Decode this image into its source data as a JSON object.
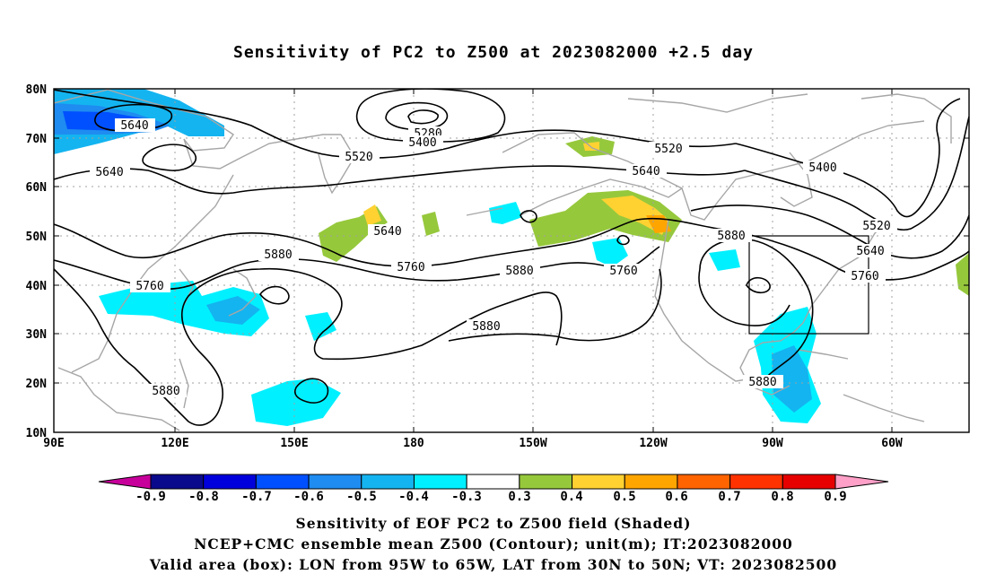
{
  "title": "Sensitivity of PC2 to Z500 at 2023082000 +2.5 day",
  "axes": {
    "lat_labels": [
      "80N",
      "70N",
      "60N",
      "50N",
      "40N",
      "30N",
      "20N",
      "10N"
    ],
    "lon_labels": [
      "90E",
      "120E",
      "150E",
      "180",
      "150W",
      "120W",
      "90W",
      "60W"
    ]
  },
  "contour_labels": [
    "5640",
    "5280",
    "5400",
    "5520",
    "5640",
    "5520",
    "5640",
    "5400",
    "5640",
    "5760",
    "5880",
    "5760",
    "5880",
    "5760",
    "5880",
    "5880",
    "5880",
    "5880",
    "5520",
    "5640",
    "5760"
  ],
  "valid_box": {
    "lon_from": "95W",
    "lon_to": "65W",
    "lat_from": "30N",
    "lat_to": "50N"
  },
  "colorbar": {
    "tick_labels": [
      "-0.9",
      "-0.8",
      "-0.7",
      "-0.6",
      "-0.5",
      "-0.4",
      "-0.3",
      "0.3",
      "0.4",
      "0.5",
      "0.6",
      "0.7",
      "0.8",
      "0.9"
    ],
    "colors": [
      "#0a0a8c",
      "#0000dc",
      "#0050ff",
      "#1e8cf0",
      "#14b4f0",
      "#00f0ff",
      "#ffffff",
      "#96c83c",
      "#ffd232",
      "#ffa500",
      "#ff6400",
      "#ff3200",
      "#e60000"
    ],
    "low_extension_color": "#c8009b",
    "high_extension_color": "#ffa0c8"
  },
  "captions": [
    "Sensitivity of EOF PC2 to Z500 field (Shaded)",
    "NCEP+CMC ensemble mean Z500 (Contour); unit(m); IT:2023082000",
    "Valid area (box): LON from 95W to 65W, LAT from 30N to 50N; VT: 2023082500"
  ]
}
